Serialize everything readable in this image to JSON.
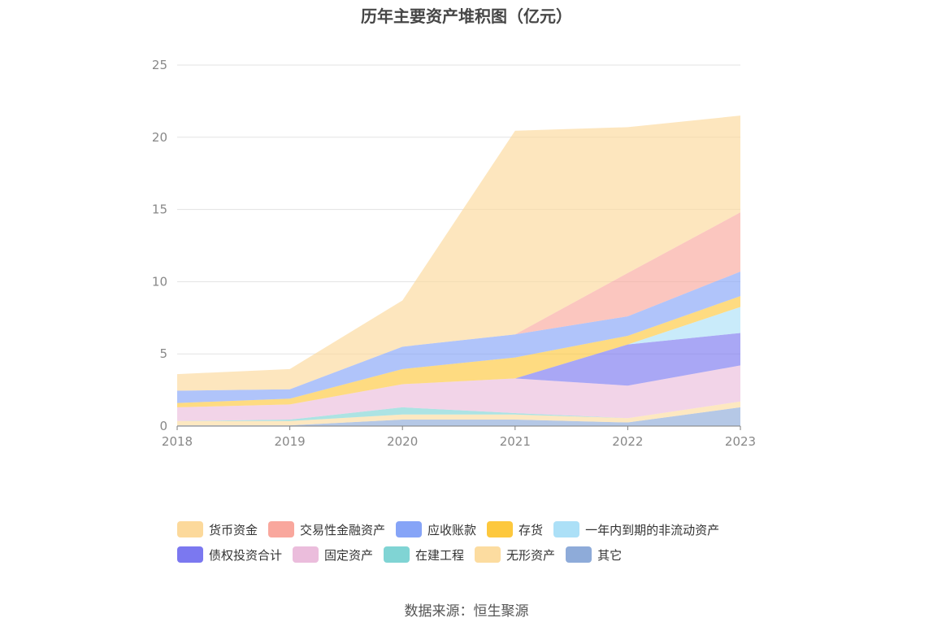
{
  "chart_data": {
    "type": "area",
    "title": "历年主要资产堆积图（亿元）",
    "source": "数据来源：恒生聚源",
    "x": [
      "2018",
      "2019",
      "2020",
      "2021",
      "2022",
      "2023"
    ],
    "ylim": [
      0,
      25
    ],
    "yticks": [
      0,
      5,
      10,
      15,
      20,
      25
    ],
    "grid": true,
    "stacked": true,
    "legend_position": "bottom",
    "series": [
      {
        "name": "其它",
        "color": "#8eabd9",
        "values": [
          0.05,
          0.05,
          0.45,
          0.45,
          0.25,
          1.3
        ]
      },
      {
        "name": "无形资产",
        "color": "#fcdca0",
        "values": [
          0.3,
          0.3,
          0.35,
          0.35,
          0.3,
          0.4
        ]
      },
      {
        "name": "在建工程",
        "color": "#80d4d4",
        "values": [
          0.0,
          0.1,
          0.5,
          0.1,
          0.0,
          0.0
        ]
      },
      {
        "name": "固定资产",
        "color": "#ebbddc",
        "values": [
          0.95,
          1.05,
          1.6,
          2.4,
          2.25,
          2.5
        ]
      },
      {
        "name": "债权投资合计",
        "color": "#7b78f0",
        "values": [
          0.0,
          0.0,
          0.0,
          0.0,
          2.85,
          2.25
        ]
      },
      {
        "name": "一年内到期的非流动资产",
        "color": "#ace0f7",
        "values": [
          0.0,
          0.0,
          0.0,
          0.0,
          0.0,
          1.8
        ]
      },
      {
        "name": "存货",
        "color": "#fdc83d",
        "values": [
          0.3,
          0.4,
          1.05,
          1.45,
          0.6,
          0.75
        ]
      },
      {
        "name": "应收账款",
        "color": "#86a4f7",
        "values": [
          0.85,
          0.65,
          1.55,
          1.6,
          1.35,
          1.7
        ]
      },
      {
        "name": "交易性金融资产",
        "color": "#f9a79d",
        "values": [
          0.0,
          0.0,
          0.0,
          0.0,
          3.0,
          4.1
        ]
      },
      {
        "name": "货币资金",
        "color": "#fcd99b",
        "values": [
          1.15,
          1.4,
          3.2,
          14.1,
          10.1,
          6.7
        ]
      }
    ]
  },
  "legend_rows": [
    [
      {
        "name": "货币资金",
        "color": "#fcd99b"
      },
      {
        "name": "交易性金融资产",
        "color": "#f9a79d"
      },
      {
        "name": "应收账款",
        "color": "#86a4f7"
      },
      {
        "name": "存货",
        "color": "#fdc83d"
      },
      {
        "name": "一年内到期的非流动资产",
        "color": "#ace0f7"
      }
    ],
    [
      {
        "name": "债权投资合计",
        "color": "#7b78f0"
      },
      {
        "name": "固定资产",
        "color": "#ebbddc"
      },
      {
        "name": "在建工程",
        "color": "#80d4d4"
      },
      {
        "name": "无形资产",
        "color": "#fcdca0"
      },
      {
        "name": "其它",
        "color": "#8eabd9"
      }
    ]
  ]
}
